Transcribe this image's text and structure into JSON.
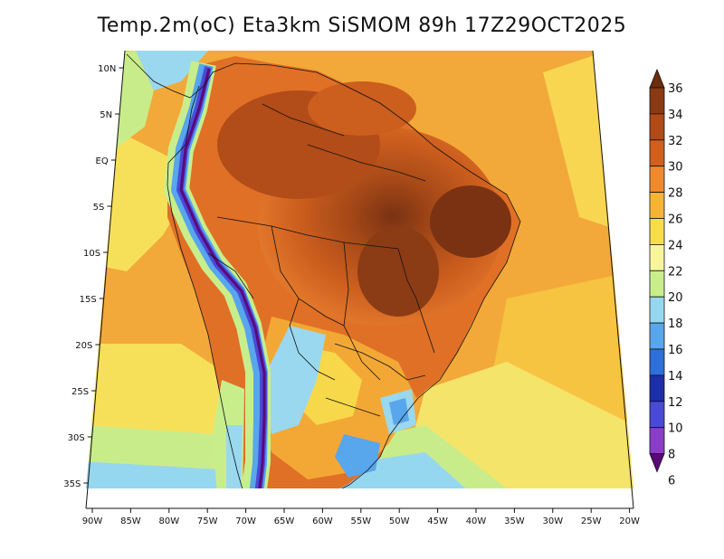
{
  "title": "Temp.2m(oC) Eta3km SiSMOM 89h 17Z29OCT2025",
  "lat_ticks": [
    "10N",
    "5N",
    "EQ",
    "5S",
    "10S",
    "15S",
    "20S",
    "25S",
    "30S",
    "35S"
  ],
  "lon_ticks": [
    "90W",
    "85W",
    "80W",
    "75W",
    "70W",
    "65W",
    "60W",
    "55W",
    "50W",
    "45W",
    "40W",
    "35W",
    "30W",
    "25W",
    "20W"
  ],
  "colorbar": {
    "labels": [
      "36",
      "34",
      "32",
      "30",
      "28",
      "26",
      "24",
      "22",
      "20",
      "18",
      "16",
      "14",
      "12",
      "10",
      "8",
      "6"
    ],
    "colors": [
      "#6b2c10",
      "#8a3a12",
      "#b04a16",
      "#d2601c",
      "#ee8a2c",
      "#f6b437",
      "#f7dd4a",
      "#f6f59a",
      "#c8ee8c",
      "#96d7f0",
      "#58a6ec",
      "#2e70da",
      "#1c2ea8",
      "#4a4ad8",
      "#8a3ec8",
      "#5a0a78"
    ]
  }
}
